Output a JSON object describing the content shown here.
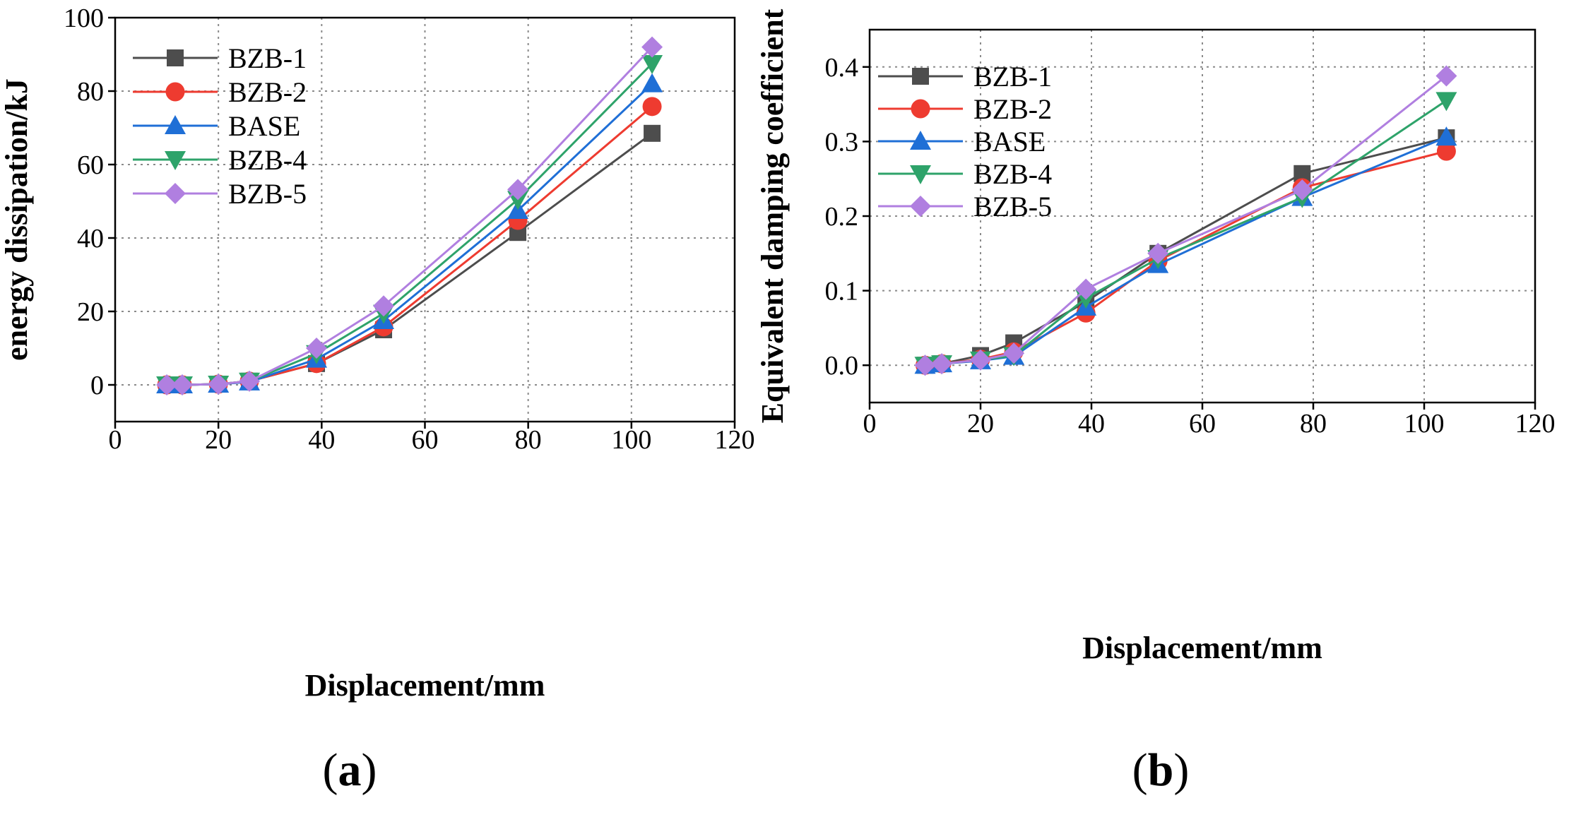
{
  "panels": {
    "a": "(a)",
    "b": "(b)"
  },
  "colors": {
    "BZB-1": "#4d4d4d",
    "BZB-2": "#ee3b30",
    "BASE": "#1f6fd6",
    "BZB-4": "#2ea36a",
    "BZB-5": "#b07fe0"
  },
  "chart_data": [
    {
      "type": "line",
      "panel": "a",
      "title": "",
      "xlabel": "Displacement/mm",
      "ylabel": "energy dissipation/kJ",
      "xlim": [
        0,
        120
      ],
      "ylim": [
        -10,
        100
      ],
      "xticks": [
        0,
        20,
        40,
        60,
        80,
        100,
        120
      ],
      "yticks": [
        0,
        20,
        40,
        60,
        80,
        100
      ],
      "grid": true,
      "legend": "top-left",
      "x": [
        10,
        13,
        20,
        26,
        39,
        52,
        78,
        104
      ],
      "series": [
        {
          "name": "BZB-1",
          "marker": "square",
          "values": [
            0,
            0,
            0.2,
            1.0,
            5.8,
            15.0,
            41.5,
            68.5
          ]
        },
        {
          "name": "BZB-2",
          "marker": "circle",
          "values": [
            0,
            0,
            0.2,
            1.0,
            5.8,
            15.8,
            44.8,
            75.8
          ]
        },
        {
          "name": "BASE",
          "marker": "triangle-up",
          "values": [
            0,
            0,
            0.2,
            0.8,
            7.0,
            17.5,
            47.5,
            82.0
          ]
        },
        {
          "name": "BZB-4",
          "marker": "triangle-down",
          "values": [
            0,
            0,
            0.2,
            1.0,
            8.5,
            19.5,
            50.5,
            87.5
          ]
        },
        {
          "name": "BZB-5",
          "marker": "diamond",
          "values": [
            0,
            0,
            0.2,
            1.0,
            10.0,
            21.5,
            53.2,
            92.0
          ]
        }
      ]
    },
    {
      "type": "line",
      "panel": "b",
      "title": "",
      "xlabel": "Displacement/mm",
      "ylabel": "Equivalent damping coefficient",
      "xlim": [
        0,
        120
      ],
      "ylim": [
        -0.05,
        0.45
      ],
      "xticks": [
        0,
        20,
        40,
        60,
        80,
        100,
        120
      ],
      "yticks": [
        0.0,
        0.1,
        0.2,
        0.3,
        0.4
      ],
      "yticklabels": [
        "0.0",
        "0.1",
        "0.2",
        "0.3",
        "0.4"
      ],
      "grid": true,
      "legend": "top-left",
      "x": [
        10,
        13,
        20,
        26,
        39,
        52,
        78,
        104
      ],
      "series": [
        {
          "name": "BZB-1",
          "marker": "square",
          "values": [
            0.0,
            0.002,
            0.013,
            0.03,
            0.085,
            0.15,
            0.257,
            0.305
          ]
        },
        {
          "name": "BZB-2",
          "marker": "circle",
          "values": [
            0.0,
            0.002,
            0.008,
            0.018,
            0.07,
            0.14,
            0.238,
            0.287
          ]
        },
        {
          "name": "BASE",
          "marker": "triangle-up",
          "values": [
            0.0,
            0.002,
            0.006,
            0.012,
            0.078,
            0.135,
            0.225,
            0.306
          ]
        },
        {
          "name": "BZB-4",
          "marker": "triangle-down",
          "values": [
            0.0,
            0.002,
            0.007,
            0.013,
            0.09,
            0.143,
            0.225,
            0.355
          ]
        },
        {
          "name": "BZB-5",
          "marker": "diamond",
          "values": [
            0.0,
            0.002,
            0.007,
            0.016,
            0.102,
            0.15,
            0.235,
            0.388
          ]
        }
      ]
    }
  ]
}
